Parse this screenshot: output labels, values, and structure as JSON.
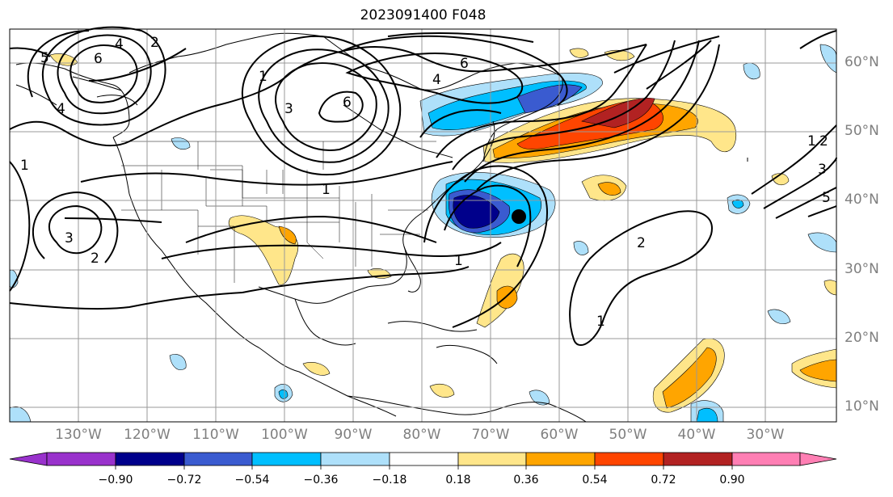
{
  "title": "2023091400 F048",
  "lat_labels": [
    "60°N",
    "50°N",
    "40°N",
    "30°N",
    "20°N",
    "10°N"
  ],
  "lon_labels": [
    "130°W",
    "120°W",
    "110°W",
    "100°W",
    "90°W",
    "80°W",
    "70°W",
    "60°W",
    "50°W",
    "40°W",
    "30°W"
  ],
  "contour_labels": [
    "6",
    "4",
    "2",
    "5",
    "4",
    "1",
    "3",
    "6",
    "4",
    "6",
    "1",
    "1",
    "2",
    "1",
    "1",
    "3",
    "2",
    "5",
    "3",
    "2",
    "1"
  ],
  "colorbar": {
    "ticks": [
      "−0.90",
      "−0.72",
      "−0.54",
      "−0.36",
      "−0.18",
      "0.18",
      "0.36",
      "0.54",
      "0.72",
      "0.90"
    ],
    "colors": [
      "#9932cc",
      "#00008b",
      "#3a5bd0",
      "#00bfff",
      "#aee0fa",
      "#ffffff",
      "#ffe68a",
      "#ffa500",
      "#ff4500",
      "#b22222",
      "#ff7fb4"
    ]
  },
  "map": {
    "lon_range": [
      "140°W",
      "20°W"
    ],
    "lat_range": [
      "8°N",
      "65°N"
    ],
    "grid": true,
    "storm_marker": "black-dot"
  }
}
